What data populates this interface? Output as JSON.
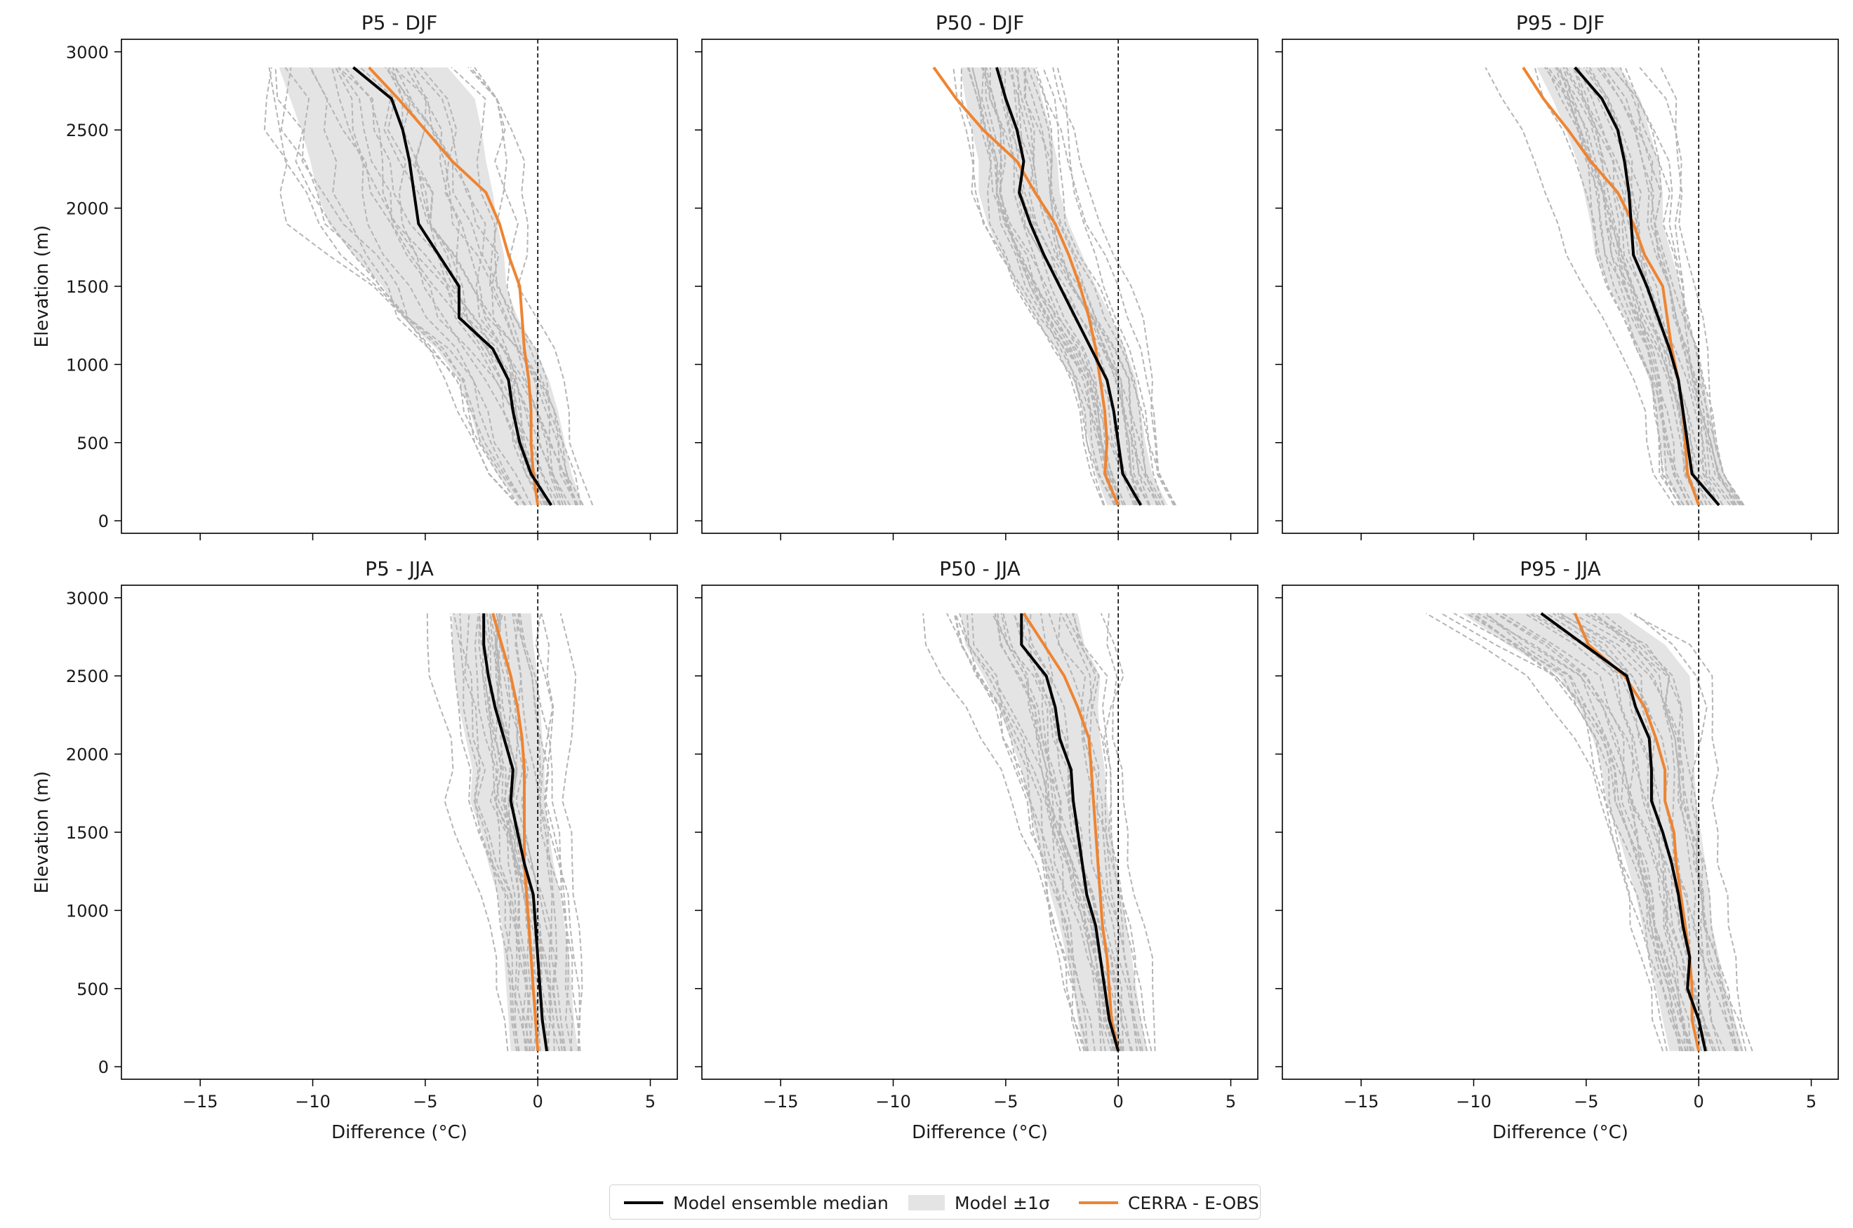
{
  "chart_data": [
    {
      "type": "line",
      "title": "P5 - DJF",
      "xlabel": "",
      "ylabel": "Elevation (m)",
      "xlim": [
        -18.5,
        6.2
      ],
      "ylim": [
        -80,
        3080
      ],
      "xticks": [
        -15,
        -10,
        -5,
        0,
        5
      ],
      "yticks": [
        0,
        500,
        1000,
        1500,
        2000,
        2500,
        3000
      ],
      "elevation": [
        100,
        300,
        500,
        700,
        900,
        1100,
        1300,
        1500,
        1700,
        1900,
        2100,
        2300,
        2500,
        2700,
        2900
      ],
      "series": [
        {
          "role": "median",
          "values": [
            0.6,
            -0.3,
            -0.8,
            -1.1,
            -1.3,
            -2.0,
            -3.5,
            -3.5,
            -4.4,
            -5.3,
            -5.5,
            -5.7,
            -6.0,
            -6.5,
            -8.2
          ]
        },
        {
          "role": "reference",
          "values": [
            0.0,
            -0.2,
            -0.3,
            -0.3,
            -0.4,
            -0.6,
            -0.7,
            -0.8,
            -1.3,
            -1.7,
            -2.3,
            -3.8,
            -5.0,
            -6.2,
            -7.5
          ]
        },
        {
          "role": "spread_low",
          "values": [
            -0.8,
            -1.8,
            -2.6,
            -3.0,
            -3.5,
            -4.5,
            -6.0,
            -6.9,
            -8.2,
            -9.3,
            -9.8,
            -10.1,
            -10.5,
            -11.0,
            -11.5
          ]
        },
        {
          "role": "spread_high",
          "values": [
            2.0,
            1.5,
            1.2,
            0.9,
            0.5,
            -0.1,
            -0.9,
            -1.4,
            -1.5,
            -1.8,
            -2.0,
            -2.3,
            -2.5,
            -2.8,
            -4.0
          ]
        }
      ]
    },
    {
      "type": "line",
      "title": "P50 - DJF",
      "xlabel": "",
      "ylabel": "",
      "xlim": [
        -18.5,
        6.2
      ],
      "ylim": [
        -80,
        3080
      ],
      "xticks": [
        -15,
        -10,
        -5,
        0,
        5
      ],
      "yticks": [
        0,
        500,
        1000,
        1500,
        2000,
        2500,
        3000
      ],
      "elevation": [
        100,
        300,
        500,
        700,
        900,
        1100,
        1300,
        1500,
        1700,
        1900,
        2100,
        2300,
        2500,
        2700,
        2900
      ],
      "series": [
        {
          "role": "median",
          "values": [
            1.0,
            0.2,
            0.0,
            -0.2,
            -0.5,
            -1.2,
            -1.9,
            -2.6,
            -3.3,
            -3.9,
            -4.4,
            -4.2,
            -4.5,
            -5.0,
            -5.4
          ]
        },
        {
          "role": "reference",
          "values": [
            0.0,
            -0.6,
            -0.5,
            -0.6,
            -0.8,
            -1.0,
            -1.3,
            -1.7,
            -2.2,
            -2.8,
            -3.7,
            -4.5,
            -6.0,
            -7.2,
            -8.2
          ]
        },
        {
          "role": "spread_low",
          "values": [
            -0.5,
            -1.0,
            -1.3,
            -1.6,
            -2.0,
            -2.8,
            -3.7,
            -4.5,
            -5.2,
            -5.8,
            -6.2,
            -6.2,
            -6.5,
            -6.8,
            -7.0
          ]
        },
        {
          "role": "spread_high",
          "values": [
            2.2,
            1.5,
            1.2,
            1.0,
            0.8,
            0.3,
            -0.3,
            -1.0,
            -1.6,
            -2.2,
            -2.6,
            -2.7,
            -3.0,
            -3.4,
            -3.7
          ]
        }
      ]
    },
    {
      "type": "line",
      "title": "P95 - DJF",
      "xlabel": "",
      "ylabel": "",
      "xlim": [
        -18.5,
        6.2
      ],
      "ylim": [
        -80,
        3080
      ],
      "xticks": [
        -15,
        -10,
        -5,
        0,
        5
      ],
      "yticks": [
        0,
        500,
        1000,
        1500,
        2000,
        2500,
        3000
      ],
      "elevation": [
        100,
        300,
        500,
        700,
        900,
        1100,
        1300,
        1500,
        1700,
        1900,
        2100,
        2300,
        2500,
        2700,
        2900
      ],
      "series": [
        {
          "role": "median",
          "values": [
            0.9,
            -0.3,
            -0.5,
            -0.7,
            -0.9,
            -1.3,
            -1.8,
            -2.3,
            -2.9,
            -3.0,
            -3.1,
            -3.3,
            -3.6,
            -4.3,
            -5.5
          ]
        },
        {
          "role": "reference",
          "values": [
            0.0,
            -0.5,
            -0.6,
            -0.7,
            -0.9,
            -1.2,
            -1.4,
            -1.6,
            -2.4,
            -2.9,
            -3.6,
            -4.8,
            -5.8,
            -6.9,
            -7.8
          ]
        },
        {
          "role": "spread_low",
          "values": [
            -0.8,
            -1.5,
            -1.7,
            -1.9,
            -2.2,
            -2.7,
            -3.3,
            -4.0,
            -4.6,
            -4.8,
            -5.1,
            -5.4,
            -5.9,
            -6.5,
            -7.2
          ]
        },
        {
          "role": "spread_high",
          "values": [
            2.0,
            1.1,
            0.8,
            0.5,
            0.2,
            -0.1,
            -0.5,
            -0.8,
            -1.2,
            -1.6,
            -1.6,
            -1.8,
            -2.2,
            -2.6,
            -3.5
          ]
        }
      ]
    },
    {
      "type": "line",
      "title": "P5 - JJA",
      "xlabel": "Difference (°C)",
      "ylabel": "Elevation (m)",
      "xlim": [
        -18.5,
        6.2
      ],
      "ylim": [
        -80,
        3080
      ],
      "xticks": [
        -15,
        -10,
        -5,
        0,
        5
      ],
      "yticks": [
        0,
        500,
        1000,
        1500,
        2000,
        2500,
        3000
      ],
      "elevation": [
        100,
        300,
        500,
        700,
        900,
        1100,
        1300,
        1500,
        1700,
        1900,
        2100,
        2300,
        2500,
        2700,
        2900
      ],
      "series": [
        {
          "role": "median",
          "values": [
            0.4,
            0.2,
            0.1,
            0.0,
            -0.1,
            -0.2,
            -0.6,
            -0.9,
            -1.2,
            -1.1,
            -1.5,
            -1.9,
            -2.2,
            -2.4,
            -2.4
          ]
        },
        {
          "role": "reference",
          "values": [
            0.0,
            -0.1,
            -0.2,
            -0.3,
            -0.4,
            -0.5,
            -0.6,
            -0.6,
            -0.6,
            -0.6,
            -0.7,
            -0.9,
            -1.2,
            -1.6,
            -2.0
          ]
        },
        {
          "role": "spread_low",
          "values": [
            -1.2,
            -1.3,
            -1.4,
            -1.5,
            -1.6,
            -1.8,
            -2.2,
            -2.5,
            -3.0,
            -2.9,
            -3.2,
            -3.5,
            -3.7,
            -3.8,
            -3.8
          ]
        },
        {
          "role": "spread_high",
          "values": [
            1.8,
            1.6,
            1.5,
            1.4,
            1.2,
            1.0,
            0.7,
            0.5,
            0.3,
            0.3,
            0.2,
            0.1,
            0.0,
            -0.2,
            -0.3
          ]
        }
      ]
    },
    {
      "type": "line",
      "title": "P50 - JJA",
      "xlabel": "Difference (°C)",
      "ylabel": "",
      "xlim": [
        -18.5,
        6.2
      ],
      "ylim": [
        -80,
        3080
      ],
      "xticks": [
        -15,
        -10,
        -5,
        0,
        5
      ],
      "yticks": [
        0,
        500,
        1000,
        1500,
        2000,
        2500,
        3000
      ],
      "elevation": [
        100,
        300,
        500,
        700,
        900,
        1100,
        1300,
        1500,
        1700,
        1900,
        2100,
        2300,
        2500,
        2700,
        2900
      ],
      "series": [
        {
          "role": "median",
          "values": [
            0.0,
            -0.4,
            -0.6,
            -0.8,
            -1.0,
            -1.4,
            -1.6,
            -1.8,
            -2.0,
            -2.1,
            -2.6,
            -2.8,
            -3.2,
            -4.3,
            -4.3
          ]
        },
        {
          "role": "reference",
          "values": [
            0.0,
            -0.3,
            -0.4,
            -0.5,
            -0.7,
            -0.8,
            -0.9,
            -1.0,
            -1.1,
            -1.2,
            -1.3,
            -1.8,
            -2.4,
            -3.3,
            -4.2
          ]
        },
        {
          "role": "spread_low",
          "values": [
            -1.5,
            -1.8,
            -2.0,
            -2.3,
            -2.6,
            -3.0,
            -3.3,
            -3.7,
            -4.0,
            -4.3,
            -4.8,
            -5.3,
            -6.0,
            -6.8,
            -7.0
          ]
        },
        {
          "role": "spread_high",
          "values": [
            1.3,
            1.0,
            0.8,
            0.6,
            0.4,
            0.1,
            -0.1,
            -0.3,
            -0.5,
            -0.6,
            -0.8,
            -0.9,
            -0.8,
            -1.5,
            -1.8
          ]
        }
      ]
    },
    {
      "type": "line",
      "title": "P95 - JJA",
      "xlabel": "Difference (°C)",
      "ylabel": "",
      "xlim": [
        -18.5,
        6.2
      ],
      "ylim": [
        -80,
        3080
      ],
      "xticks": [
        -15,
        -10,
        -5,
        0,
        5
      ],
      "yticks": [
        0,
        500,
        1000,
        1500,
        2000,
        2500,
        3000
      ],
      "elevation": [
        100,
        300,
        500,
        700,
        900,
        1100,
        1300,
        1500,
        1700,
        1900,
        2100,
        2300,
        2500,
        2700,
        2900
      ],
      "series": [
        {
          "role": "median",
          "values": [
            0.3,
            0.0,
            -0.5,
            -0.4,
            -0.7,
            -0.9,
            -1.2,
            -1.6,
            -2.1,
            -2.1,
            -2.2,
            -2.8,
            -3.2,
            -5.1,
            -7.0
          ]
        },
        {
          "role": "reference",
          "values": [
            0.0,
            -0.3,
            -0.3,
            -0.4,
            -0.6,
            -0.8,
            -1.0,
            -1.1,
            -1.5,
            -1.5,
            -1.9,
            -2.4,
            -3.3,
            -4.9,
            -5.5
          ]
        },
        {
          "role": "spread_low",
          "values": [
            -1.3,
            -1.6,
            -1.9,
            -2.2,
            -2.5,
            -2.8,
            -3.2,
            -3.6,
            -4.1,
            -4.3,
            -4.7,
            -5.3,
            -6.2,
            -8.5,
            -10.5
          ]
        },
        {
          "role": "spread_high",
          "values": [
            2.0,
            1.6,
            1.2,
            0.9,
            0.6,
            0.5,
            0.3,
            0.1,
            -0.1,
            -0.2,
            -0.2,
            -0.3,
            -0.4,
            -1.5,
            -3.5
          ]
        }
      ]
    }
  ],
  "legend": {
    "median_label": "Model ensemble median",
    "spread_label": "Model ±1σ",
    "reference_label": "CERRA - E-OBS"
  },
  "colors": {
    "median": "#000000",
    "reference": "#ee8432",
    "spread": "#e4e4e4",
    "members": "#b5b5b5"
  }
}
